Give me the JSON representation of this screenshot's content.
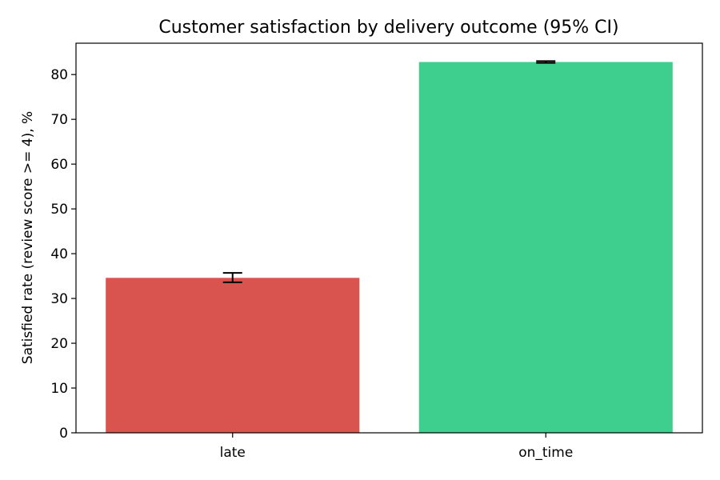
{
  "chart_data": {
    "type": "bar",
    "title": "Customer satisfaction by delivery outcome (95% CI)",
    "xlabel": "",
    "ylabel": "Satisfied rate (review score >= 4), %",
    "categories": [
      "late",
      "on_time"
    ],
    "values": [
      34.6,
      82.8
    ],
    "error_bars": [
      {
        "low": 33.6,
        "high": 35.7
      },
      {
        "low": 82.6,
        "high": 83.0
      }
    ],
    "colors": [
      "#d9534f",
      "#3ecf8e"
    ],
    "ylim": [
      0,
      87
    ],
    "yticks": [
      0,
      10,
      20,
      30,
      40,
      50,
      60,
      70,
      80
    ],
    "grid": false,
    "legend": "none"
  }
}
